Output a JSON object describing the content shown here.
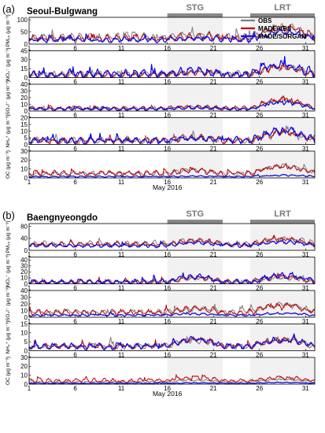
{
  "chart_data": {
    "type": "line",
    "xlabel": "May 2016",
    "x_ticks": [
      1,
      6,
      11,
      16,
      21,
      26,
      31
    ],
    "x_range": [
      1,
      32
    ],
    "legend": {
      "placement": "top-right",
      "entries": [
        {
          "name": "OBS",
          "color": "#7f7f7f"
        },
        {
          "name": "MADE/VBS",
          "color": "#c00000"
        },
        {
          "name": "MADE/SORGAM",
          "color": "#1010e0"
        }
      ]
    },
    "periods": [
      {
        "label": "STG",
        "start": 16,
        "end": 22
      },
      {
        "label": "LRT",
        "start": 25,
        "end": 32
      }
    ],
    "panels": [
      {
        "label": "(a)",
        "site": "Seoul-Bulgwang",
        "show_legend": true,
        "show_xlabel": true,
        "subplots": [
          {
            "ylabel": "PM₂₅ (μg m⁻³)",
            "yticks": [
              0,
              50,
              100
            ],
            "ylim": [
              0,
              110
            ],
            "seed": 11,
            "series": [
              {
                "name": "OBS",
                "base": 28,
                "amp": 22,
                "lrt": 45,
                "stg": 8
              },
              {
                "name": "MADE/VBS",
                "base": 24,
                "amp": 18,
                "lrt": 42,
                "stg": 6
              },
              {
                "name": "MADE/SORGAM",
                "base": 18,
                "amp": 14,
                "lrt": 35,
                "stg": 5
              }
            ]
          },
          {
            "ylabel": "NO₃⁻ (μg m⁻³)",
            "yticks": [
              0,
              15,
              30,
              45
            ],
            "ylim": [
              0,
              45
            ],
            "seed": 23,
            "series": [
              {
                "name": "OBS",
                "base": 6,
                "amp": 6,
                "lrt": 12,
                "stg": 3
              },
              {
                "name": "MADE/VBS",
                "base": 5,
                "amp": 7,
                "lrt": 14,
                "stg": 4
              },
              {
                "name": "MADE/SORGAM",
                "base": 6,
                "amp": 9,
                "lrt": 16,
                "stg": 5
              }
            ]
          },
          {
            "ylabel": "SO₄²⁻ (μg m⁻³)",
            "yticks": [
              0,
              10,
              20,
              30,
              40
            ],
            "ylim": [
              0,
              40
            ],
            "seed": 37,
            "series": [
              {
                "name": "OBS",
                "base": 4,
                "amp": 3,
                "lrt": 12,
                "stg": 2
              },
              {
                "name": "MADE/VBS",
                "base": 4,
                "amp": 4,
                "lrt": 14,
                "stg": 2
              },
              {
                "name": "MADE/SORGAM",
                "base": 3,
                "amp": 3,
                "lrt": 10,
                "stg": 2
              }
            ]
          },
          {
            "ylabel": "NH₄⁺ (μg m⁻³)",
            "yticks": [
              0,
              5,
              10,
              15,
              20
            ],
            "ylim": [
              0,
              20
            ],
            "seed": 41,
            "series": [
              {
                "name": "OBS",
                "base": 3,
                "amp": 3,
                "lrt": 6,
                "stg": 2
              },
              {
                "name": "MADE/VBS",
                "base": 3,
                "amp": 3,
                "lrt": 7,
                "stg": 2
              },
              {
                "name": "MADE/SORGAM",
                "base": 3,
                "amp": 3,
                "lrt": 8,
                "stg": 2
              }
            ]
          },
          {
            "ylabel": "OC (μg m⁻³)",
            "yticks": [
              0,
              10,
              20,
              30
            ],
            "ylim": [
              0,
              30
            ],
            "seed": 53,
            "series": [
              {
                "name": "OBS",
                "base": 5,
                "amp": 3,
                "lrt": 10,
                "stg": 4
              },
              {
                "name": "MADE/VBS",
                "base": 5,
                "amp": 4,
                "lrt": 8,
                "stg": 3
              },
              {
                "name": "MADE/SORGAM",
                "base": 1.5,
                "amp": 1,
                "lrt": 1.5,
                "stg": 0.5
              }
            ]
          }
        ]
      },
      {
        "label": "(b)",
        "site": "Baengnyeongdo",
        "show_legend": false,
        "show_xlabel": true,
        "subplots": [
          {
            "ylabel": "PM₂₅ (μg m⁻³)",
            "yticks": [
              0,
              40,
              80
            ],
            "ylim": [
              0,
              90
            ],
            "seed": 61,
            "series": [
              {
                "name": "OBS",
                "base": 22,
                "amp": 12,
                "lrt": 18,
                "stg": 12
              },
              {
                "name": "MADE/VBS",
                "base": 20,
                "amp": 10,
                "lrt": 18,
                "stg": 14
              },
              {
                "name": "MADE/SORGAM",
                "base": 16,
                "amp": 8,
                "lrt": 14,
                "stg": 10
              }
            ]
          },
          {
            "ylabel": "NO₃⁻ (μg m⁻³)",
            "yticks": [
              0,
              10,
              20,
              30,
              40
            ],
            "ylim": [
              0,
              45
            ],
            "seed": 73,
            "series": [
              {
                "name": "OBS",
                "base": 3,
                "amp": 4,
                "lrt": 8,
                "stg": 6
              },
              {
                "name": "MADE/VBS",
                "base": 3,
                "amp": 5,
                "lrt": 10,
                "stg": 8
              },
              {
                "name": "MADE/SORGAM",
                "base": 3,
                "amp": 6,
                "lrt": 12,
                "stg": 9
              }
            ]
          },
          {
            "ylabel": "SO₄²⁻ (μg m⁻³)",
            "yticks": [
              0,
              10,
              20,
              30,
              40
            ],
            "ylim": [
              0,
              40
            ],
            "seed": 83,
            "series": [
              {
                "name": "OBS",
                "base": 8,
                "amp": 5,
                "lrt": 12,
                "stg": 5
              },
              {
                "name": "MADE/VBS",
                "base": 7,
                "amp": 6,
                "lrt": 12,
                "stg": 6
              },
              {
                "name": "MADE/SORGAM",
                "base": 3,
                "amp": 2,
                "lrt": 3,
                "stg": 2
              }
            ]
          },
          {
            "ylabel": "NH₄⁺ (μg m⁻³)",
            "yticks": [
              0,
              5,
              10,
              15
            ],
            "ylim": [
              0,
              15
            ],
            "seed": 97,
            "series": [
              {
                "name": "OBS",
                "base": 2.5,
                "amp": 2,
                "lrt": 4,
                "stg": 3
              },
              {
                "name": "MADE/VBS",
                "base": 2.5,
                "amp": 2,
                "lrt": 4,
                "stg": 4
              },
              {
                "name": "MADE/SORGAM",
                "base": 2.5,
                "amp": 2,
                "lrt": 4,
                "stg": 4
              }
            ]
          },
          {
            "ylabel": "OC (μg m⁻³)",
            "yticks": [
              0,
              10,
              20,
              30
            ],
            "ylim": [
              0,
              30
            ],
            "seed": 101,
            "series": [
              {
                "name": "OBS",
                "base": 2.5,
                "amp": 1.5,
                "lrt": 3,
                "stg": 2
              },
              {
                "name": "MADE/VBS",
                "base": 4,
                "amp": 3,
                "lrt": 4,
                "stg": 3
              },
              {
                "name": "MADE/SORGAM",
                "base": 1,
                "amp": 0.6,
                "lrt": 1,
                "stg": 0.5
              }
            ]
          }
        ]
      }
    ]
  }
}
